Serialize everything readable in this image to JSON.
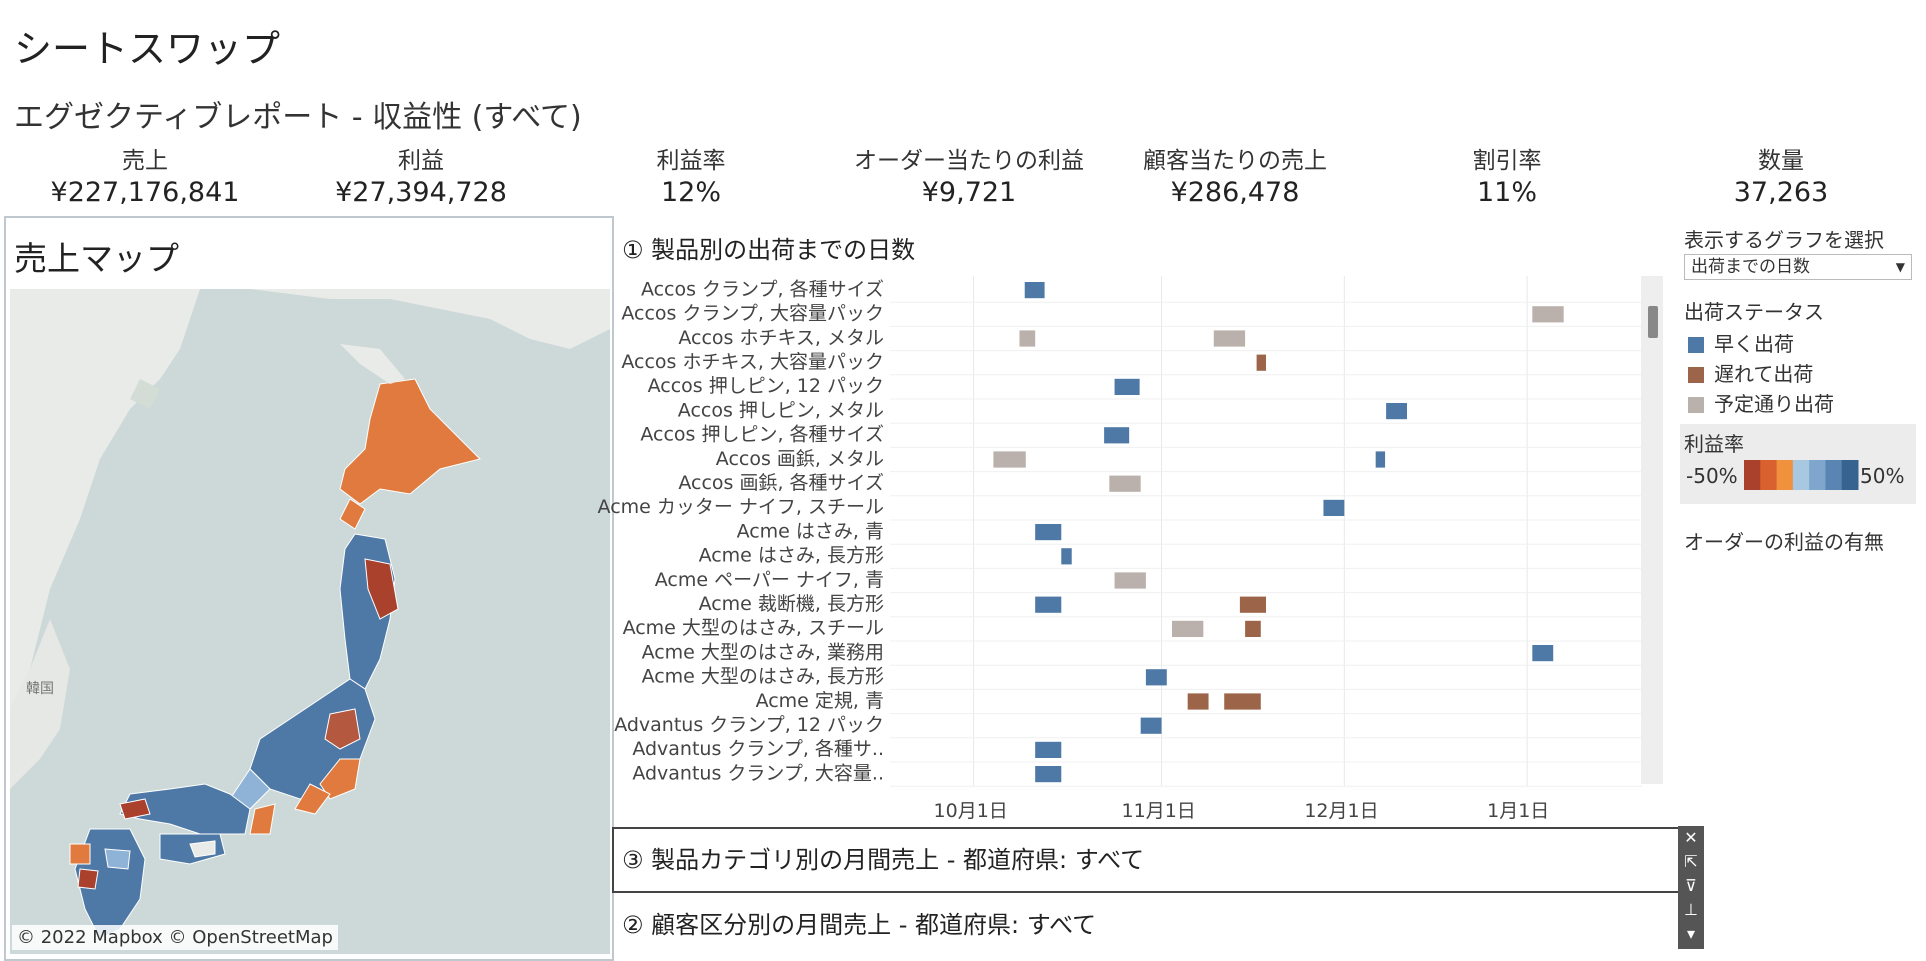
{
  "dashboard_title": "シートスワップ",
  "report_title": "エグゼクティブレポート - 収益性 (すべて)",
  "kpis": [
    {
      "label": "売上",
      "value": "¥227,176,841"
    },
    {
      "label": "利益",
      "value": "¥27,394,728"
    },
    {
      "label": "利益率",
      "value": "12%"
    },
    {
      "label": "オーダー当たりの利益",
      "value": "¥9,721"
    },
    {
      "label": "顧客当たりの売上",
      "value": "¥286,478"
    },
    {
      "label": "割引率",
      "value": "11%"
    },
    {
      "label": "数量",
      "value": "37,263"
    }
  ],
  "map": {
    "title": "売上マップ",
    "credit": "© 2022 Mapbox © OpenStreetMap",
    "korea_label": "韓国",
    "colors": {
      "sea": "#cdd8d8",
      "land": "#e9ebe8",
      "blue": "#4e79a7",
      "lightblue": "#8fb3d6",
      "orange": "#e07a3e",
      "brown": "#b4583f",
      "darkred": "#a9412d"
    }
  },
  "gantt": {
    "title": "①  製品別の出荷までの日数",
    "rows": [
      "Accos クランプ, 各種サイズ",
      "Accos クランプ, 大容量パック",
      "Accos ホチキス, メタル",
      "Accos ホチキス, 大容量パック",
      "Accos 押しピン, 12 パック",
      "Accos 押しピン, メタル",
      "Accos 押しピン, 各種サイズ",
      "Accos 画鋲, メタル",
      "Accos 画鋲, 各種サイズ",
      "Acme カッター ナイフ, スチール",
      "Acme はさみ, 青",
      "Acme はさみ, 長方形",
      "Acme ペーパー ナイフ, 青",
      "Acme 裁断機, 長方形",
      "Acme 大型のはさみ, スチール",
      "Acme 大型のはさみ, 業務用",
      "Acme 大型のはさみ, 長方形",
      "Acme 定規, 青",
      "Advantus クランプ, 12 パック",
      "Advantus クランプ, 各種サ..",
      "Advantus クランプ, 大容量.."
    ],
    "x_ticks": [
      "10月1日",
      "11月1日",
      "12月1日",
      "1月1日"
    ],
    "status_colors": {
      "early": "#4e79a7",
      "late": "#9c6549",
      "ontime": "#bab0ac"
    },
    "bars": [
      {
        "row": 0,
        "start": 2.58,
        "end": 2.96,
        "status": "early"
      },
      {
        "row": 1,
        "start": 12.3,
        "end": 12.9,
        "status": "ontime"
      },
      {
        "row": 2,
        "start": 2.48,
        "end": 2.78,
        "status": "ontime"
      },
      {
        "row": 2,
        "start": 6.2,
        "end": 6.8,
        "status": "ontime"
      },
      {
        "row": 3,
        "start": 7.02,
        "end": 7.2,
        "status": "late"
      },
      {
        "row": 4,
        "start": 4.3,
        "end": 4.78,
        "status": "early"
      },
      {
        "row": 5,
        "start": 9.5,
        "end": 9.9,
        "status": "early"
      },
      {
        "row": 6,
        "start": 4.1,
        "end": 4.58,
        "status": "early"
      },
      {
        "row": 7,
        "start": 1.98,
        "end": 2.6,
        "status": "ontime"
      },
      {
        "row": 7,
        "start": 9.3,
        "end": 9.48,
        "status": "early"
      },
      {
        "row": 8,
        "start": 4.2,
        "end": 4.8,
        "status": "ontime"
      },
      {
        "row": 9,
        "start": 8.3,
        "end": 8.7,
        "status": "early"
      },
      {
        "row": 10,
        "start": 2.78,
        "end": 3.28,
        "status": "early"
      },
      {
        "row": 11,
        "start": 3.28,
        "end": 3.48,
        "status": "early"
      },
      {
        "row": 12,
        "start": 4.3,
        "end": 4.9,
        "status": "ontime"
      },
      {
        "row": 13,
        "start": 2.78,
        "end": 3.28,
        "status": "early"
      },
      {
        "row": 13,
        "start": 6.7,
        "end": 7.2,
        "status": "late"
      },
      {
        "row": 14,
        "start": 5.4,
        "end": 6.0,
        "status": "ontime"
      },
      {
        "row": 14,
        "start": 6.8,
        "end": 7.1,
        "status": "late"
      },
      {
        "row": 15,
        "start": 12.3,
        "end": 12.7,
        "status": "early"
      },
      {
        "row": 16,
        "start": 4.9,
        "end": 5.3,
        "status": "early"
      },
      {
        "row": 17,
        "start": 5.7,
        "end": 6.1,
        "status": "late"
      },
      {
        "row": 17,
        "start": 6.4,
        "end": 7.1,
        "status": "late"
      },
      {
        "row": 18,
        "start": 4.8,
        "end": 5.2,
        "status": "early"
      },
      {
        "row": 19,
        "start": 2.78,
        "end": 3.28,
        "status": "early"
      },
      {
        "row": 20,
        "start": 2.78,
        "end": 3.28,
        "status": "early"
      }
    ]
  },
  "section3_title": "③  製品カテゴリ別の月間売上 - 都道府県: すべて",
  "section2_title": "②  顧客区分別の月間売上 - 都道府県: すべて",
  "legend": {
    "select_graph_label": "表示するグラフを選択",
    "select_graph_value": "出荷までの日数",
    "shipping_status_label": "出荷ステータス",
    "statuses": [
      {
        "key": "early",
        "label": "早く出荷",
        "color": "#4e79a7"
      },
      {
        "key": "late",
        "label": "遅れて出荷",
        "color": "#9c6549"
      },
      {
        "key": "ontime",
        "label": "予定通り出荷",
        "color": "#bab0ac"
      }
    ],
    "profit_ratio_label": "利益率",
    "profit_min": "-50%",
    "profit_max": "50%",
    "profit_palette": [
      "#a9412d",
      "#d9602f",
      "#f0913e",
      "#a8c8e2",
      "#7fa6cd",
      "#5a85b3",
      "#36638f"
    ],
    "order_profit_label": "オーダーの利益の有無"
  }
}
